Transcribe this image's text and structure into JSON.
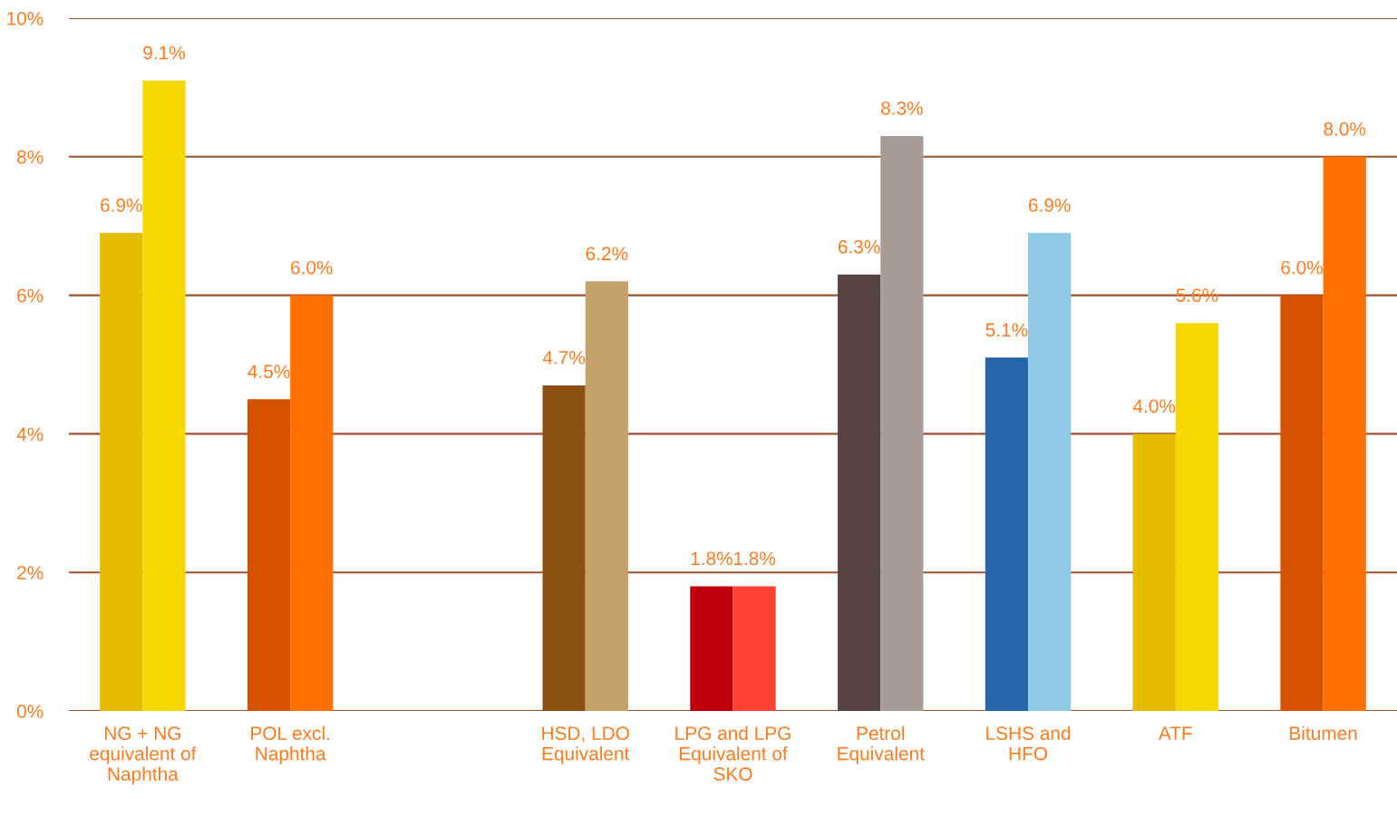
{
  "chart_data": {
    "type": "bar",
    "categories": [
      "NG + NG\nequivalent of\nNaphtha",
      "POL excl.\nNaphtha",
      null,
      "HSD, LDO\nEquivalent",
      "LPG and LPG\nEquivalent of\nSKO",
      "Petrol\nEquivalent",
      "LSHS and\nHFO",
      "ATF",
      "Bitumen"
    ],
    "series": [
      {
        "colors": [
          "#e6bc00",
          "#d65200",
          null,
          "#8b5010",
          "#c0000b",
          "#574242",
          "#2566a8",
          "#e6bc00",
          "#d65200"
        ],
        "values": [
          6.9,
          4.5,
          null,
          4.7,
          1.8,
          6.3,
          5.1,
          4.0,
          6.0
        ],
        "value_labels": [
          "6.9%",
          "4.5%",
          null,
          "4.7%",
          "1.8%",
          "6.3%",
          "5.1%",
          "4.0%",
          "6.0%"
        ]
      },
      {
        "colors": [
          "#f5d800",
          "#ff7000",
          null,
          "#c4a06a",
          "#ff4033",
          "#a89c96",
          "#8ecae6",
          "#f5d800",
          "#ff7000"
        ],
        "values": [
          9.1,
          6.0,
          null,
          6.2,
          1.8,
          8.3,
          6.9,
          5.6,
          8.0
        ],
        "value_labels": [
          "9.1%",
          "6.0%",
          null,
          "6.2%",
          "1.8%",
          "8.3%",
          "6.9%",
          "5.6%",
          "8.0%"
        ]
      }
    ],
    "ylim": [
      0,
      10
    ],
    "yticks": [
      {
        "value": 0,
        "label": "0%"
      },
      {
        "value": 2,
        "label": "2%"
      },
      {
        "value": 4,
        "label": "4%"
      },
      {
        "value": 6,
        "label": "6%"
      },
      {
        "value": 8,
        "label": "8%"
      },
      {
        "value": 10,
        "label": "10%"
      }
    ],
    "grid": "y"
  }
}
